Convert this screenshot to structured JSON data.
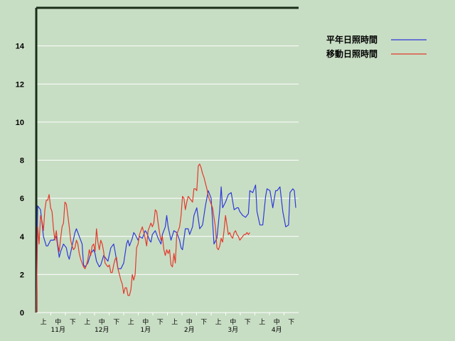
{
  "chart_data": {
    "type": "line",
    "title": "",
    "xlabel": "",
    "ylabel": "",
    "ylim": [
      0,
      16
    ],
    "yticks": [
      0,
      2,
      4,
      6,
      8,
      10,
      12,
      14
    ],
    "grid": "horizontal",
    "legend_position": "top-right",
    "x_range": [
      0,
      183
    ],
    "period_labels": [
      "上",
      "中",
      "下",
      "上",
      "中",
      "下",
      "上",
      "中",
      "下",
      "上",
      "中",
      "下",
      "上",
      "中",
      "下",
      "上",
      "中",
      "下"
    ],
    "month_labels": [
      "11月",
      "12月",
      "1月",
      "2月",
      "3月",
      "4月"
    ],
    "series": [
      {
        "name": "平年日照時間",
        "color": "#2f39d8",
        "x": [
          0,
          1,
          2,
          3,
          5,
          7,
          8,
          10,
          12,
          14,
          16,
          17,
          19,
          20,
          21,
          22,
          23,
          25,
          27,
          28,
          30,
          32,
          33,
          34,
          36,
          38,
          40,
          41,
          42,
          44,
          45,
          47,
          48,
          50,
          52,
          54,
          55,
          57,
          59,
          61,
          63,
          64,
          65,
          67,
          68,
          69,
          71,
          72,
          74,
          76,
          77,
          79,
          80,
          81,
          83,
          85,
          87,
          88,
          90,
          91,
          92,
          94,
          96,
          98,
          100,
          101,
          102,
          104,
          106,
          107,
          109,
          110,
          112,
          114,
          116,
          118,
          120,
          122,
          124,
          126,
          128,
          129,
          130,
          132,
          134,
          136,
          138,
          140,
          141,
          142,
          144,
          146,
          148,
          149,
          151,
          153,
          154,
          156,
          158,
          160,
          161,
          163,
          165,
          167,
          168,
          170,
          172,
          174,
          176,
          177,
          179,
          180,
          181
        ],
        "values": [
          0,
          5.6,
          5.5,
          5.4,
          4,
          3.5,
          3.5,
          3.8,
          3.8,
          4,
          2.9,
          3.2,
          3.6,
          3.5,
          3.4,
          3,
          2.8,
          3.5,
          4.2,
          4.4,
          4,
          3.6,
          2.5,
          2.4,
          2.6,
          3.1,
          3.3,
          3.1,
          2.7,
          2.4,
          2.5,
          3,
          2.9,
          2.7,
          3.4,
          3.6,
          3.2,
          2.3,
          2.3,
          2.6,
          3.6,
          3.8,
          3.5,
          3.9,
          4.2,
          4.1,
          3.8,
          4,
          3.9,
          4.3,
          4.2,
          3.8,
          3.7,
          4.1,
          4.3,
          3.9,
          3.6,
          4.1,
          4.5,
          5.1,
          4.5,
          3.8,
          4.3,
          4.2,
          3.8,
          3.4,
          3.3,
          4.4,
          4.4,
          4.1,
          4.5,
          5.1,
          5.5,
          4.4,
          4.6,
          5.6,
          6.4,
          6.0,
          3.6,
          3.9,
          5.4,
          6.6,
          5.5,
          5.8,
          6.2,
          6.3,
          5.4,
          5.5,
          5.5,
          5.3,
          5.1,
          5.0,
          5.2,
          6.4,
          6.3,
          6.7,
          5.3,
          4.6,
          4.6,
          6.1,
          6.5,
          6.4,
          5.5,
          6.4,
          6.4,
          6.6,
          5.3,
          4.5,
          4.6,
          6.3,
          6.5,
          6.4,
          5.5
        ],
        "note": "values read from plot, approximate"
      },
      {
        "name": "移動日照時間",
        "color": "#e23a2c",
        "x": [
          0,
          1,
          2,
          3,
          4,
          5,
          6,
          7,
          8,
          9,
          10,
          11,
          12,
          13,
          14,
          15,
          16,
          17,
          18,
          19,
          20,
          21,
          22,
          23,
          24,
          25,
          26,
          27,
          28,
          29,
          30,
          31,
          32,
          33,
          34,
          35,
          36,
          37,
          38,
          39,
          40,
          41,
          42,
          43,
          44,
          45,
          46,
          47,
          48,
          49,
          50,
          51,
          52,
          53,
          54,
          55,
          56,
          57,
          58,
          59,
          60,
          61,
          62,
          63,
          64,
          65,
          66,
          67,
          68,
          69,
          70,
          71,
          72,
          73,
          74,
          75,
          76,
          77,
          78,
          79,
          80,
          81,
          82,
          83,
          84,
          85,
          86,
          87,
          88,
          89,
          90,
          91,
          92,
          93,
          94,
          95,
          96,
          97,
          98,
          99,
          100,
          101,
          102,
          103,
          104,
          105,
          106,
          107,
          108,
          109,
          110,
          111,
          112,
          113,
          114,
          115,
          116,
          117,
          118,
          119,
          120,
          121,
          122,
          123,
          124,
          125,
          126,
          127,
          128,
          129,
          130,
          131,
          132,
          133,
          134,
          135,
          136,
          137,
          138,
          139,
          140,
          141,
          142,
          143,
          144,
          145,
          146,
          147,
          148,
          149
        ],
        "values": [
          0,
          4.5,
          3.6,
          5.1,
          4.8,
          4.3,
          5.4,
          5.9,
          5.9,
          6.2,
          5.5,
          5.3,
          4.4,
          3.8,
          4.3,
          3.6,
          3.2,
          3.9,
          4.5,
          4.7,
          5.8,
          5.7,
          5.1,
          4.5,
          3.8,
          3.5,
          3.3,
          3.4,
          3.8,
          3.6,
          3.1,
          2.8,
          2.6,
          2.4,
          2.3,
          2.5,
          2.8,
          3.3,
          3.0,
          3.5,
          3.6,
          3.2,
          4.4,
          3.7,
          3.3,
          3.8,
          3.6,
          3.2,
          2.6,
          2.5,
          2.4,
          2.5,
          2.1,
          2.1,
          2.5,
          2.8,
          2.9,
          2.3,
          2.0,
          1.7,
          1.5,
          1.0,
          1.3,
          1.3,
          0.9,
          0.9,
          1.2,
          2.0,
          1.7,
          2.0,
          3.4,
          3.6,
          4.1,
          4.3,
          4.5,
          4.2,
          3.9,
          3.5,
          4.3,
          4.5,
          4.7,
          4.5,
          4.7,
          5.4,
          5.3,
          4.7,
          4.2,
          3.8,
          4.0,
          3.3,
          3.0,
          3.3,
          3.1,
          3.3,
          2.5,
          2.4,
          3.1,
          2.6,
          4.1,
          4.3,
          4.5,
          5.1,
          6.1,
          6.0,
          5.4,
          5.8,
          6.1,
          6.0,
          5.9,
          5.8,
          6.5,
          6.5,
          6.4,
          7.7,
          7.8,
          7.6,
          7.3,
          7.1,
          6.8,
          6.5,
          6.1,
          5.9,
          5.7,
          5.5,
          5.0,
          4.5,
          3.4,
          3.3,
          3.5,
          3.9,
          3.7,
          4.3,
          5.1,
          4.6,
          4.1,
          4.2,
          4.0,
          3.9,
          4.2,
          4.3,
          4.1,
          4.0,
          3.8,
          3.9,
          4.0,
          4.1,
          4.1,
          4.2,
          4.1,
          4.2
        ],
        "note": "values read from plot, approximate"
      }
    ]
  }
}
